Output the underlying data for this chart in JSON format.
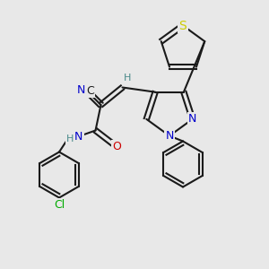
{
  "bg_color": "#e8e8e8",
  "bond_color": "#1a1a1a",
  "colors": {
    "N": "#0000cc",
    "O": "#cc0000",
    "S": "#cccc00",
    "Cl": "#00aa00",
    "C": "#1a1a1a",
    "H": "#4a8a8a"
  },
  "lw": 1.5,
  "dlw": 1.0,
  "fs": 9
}
